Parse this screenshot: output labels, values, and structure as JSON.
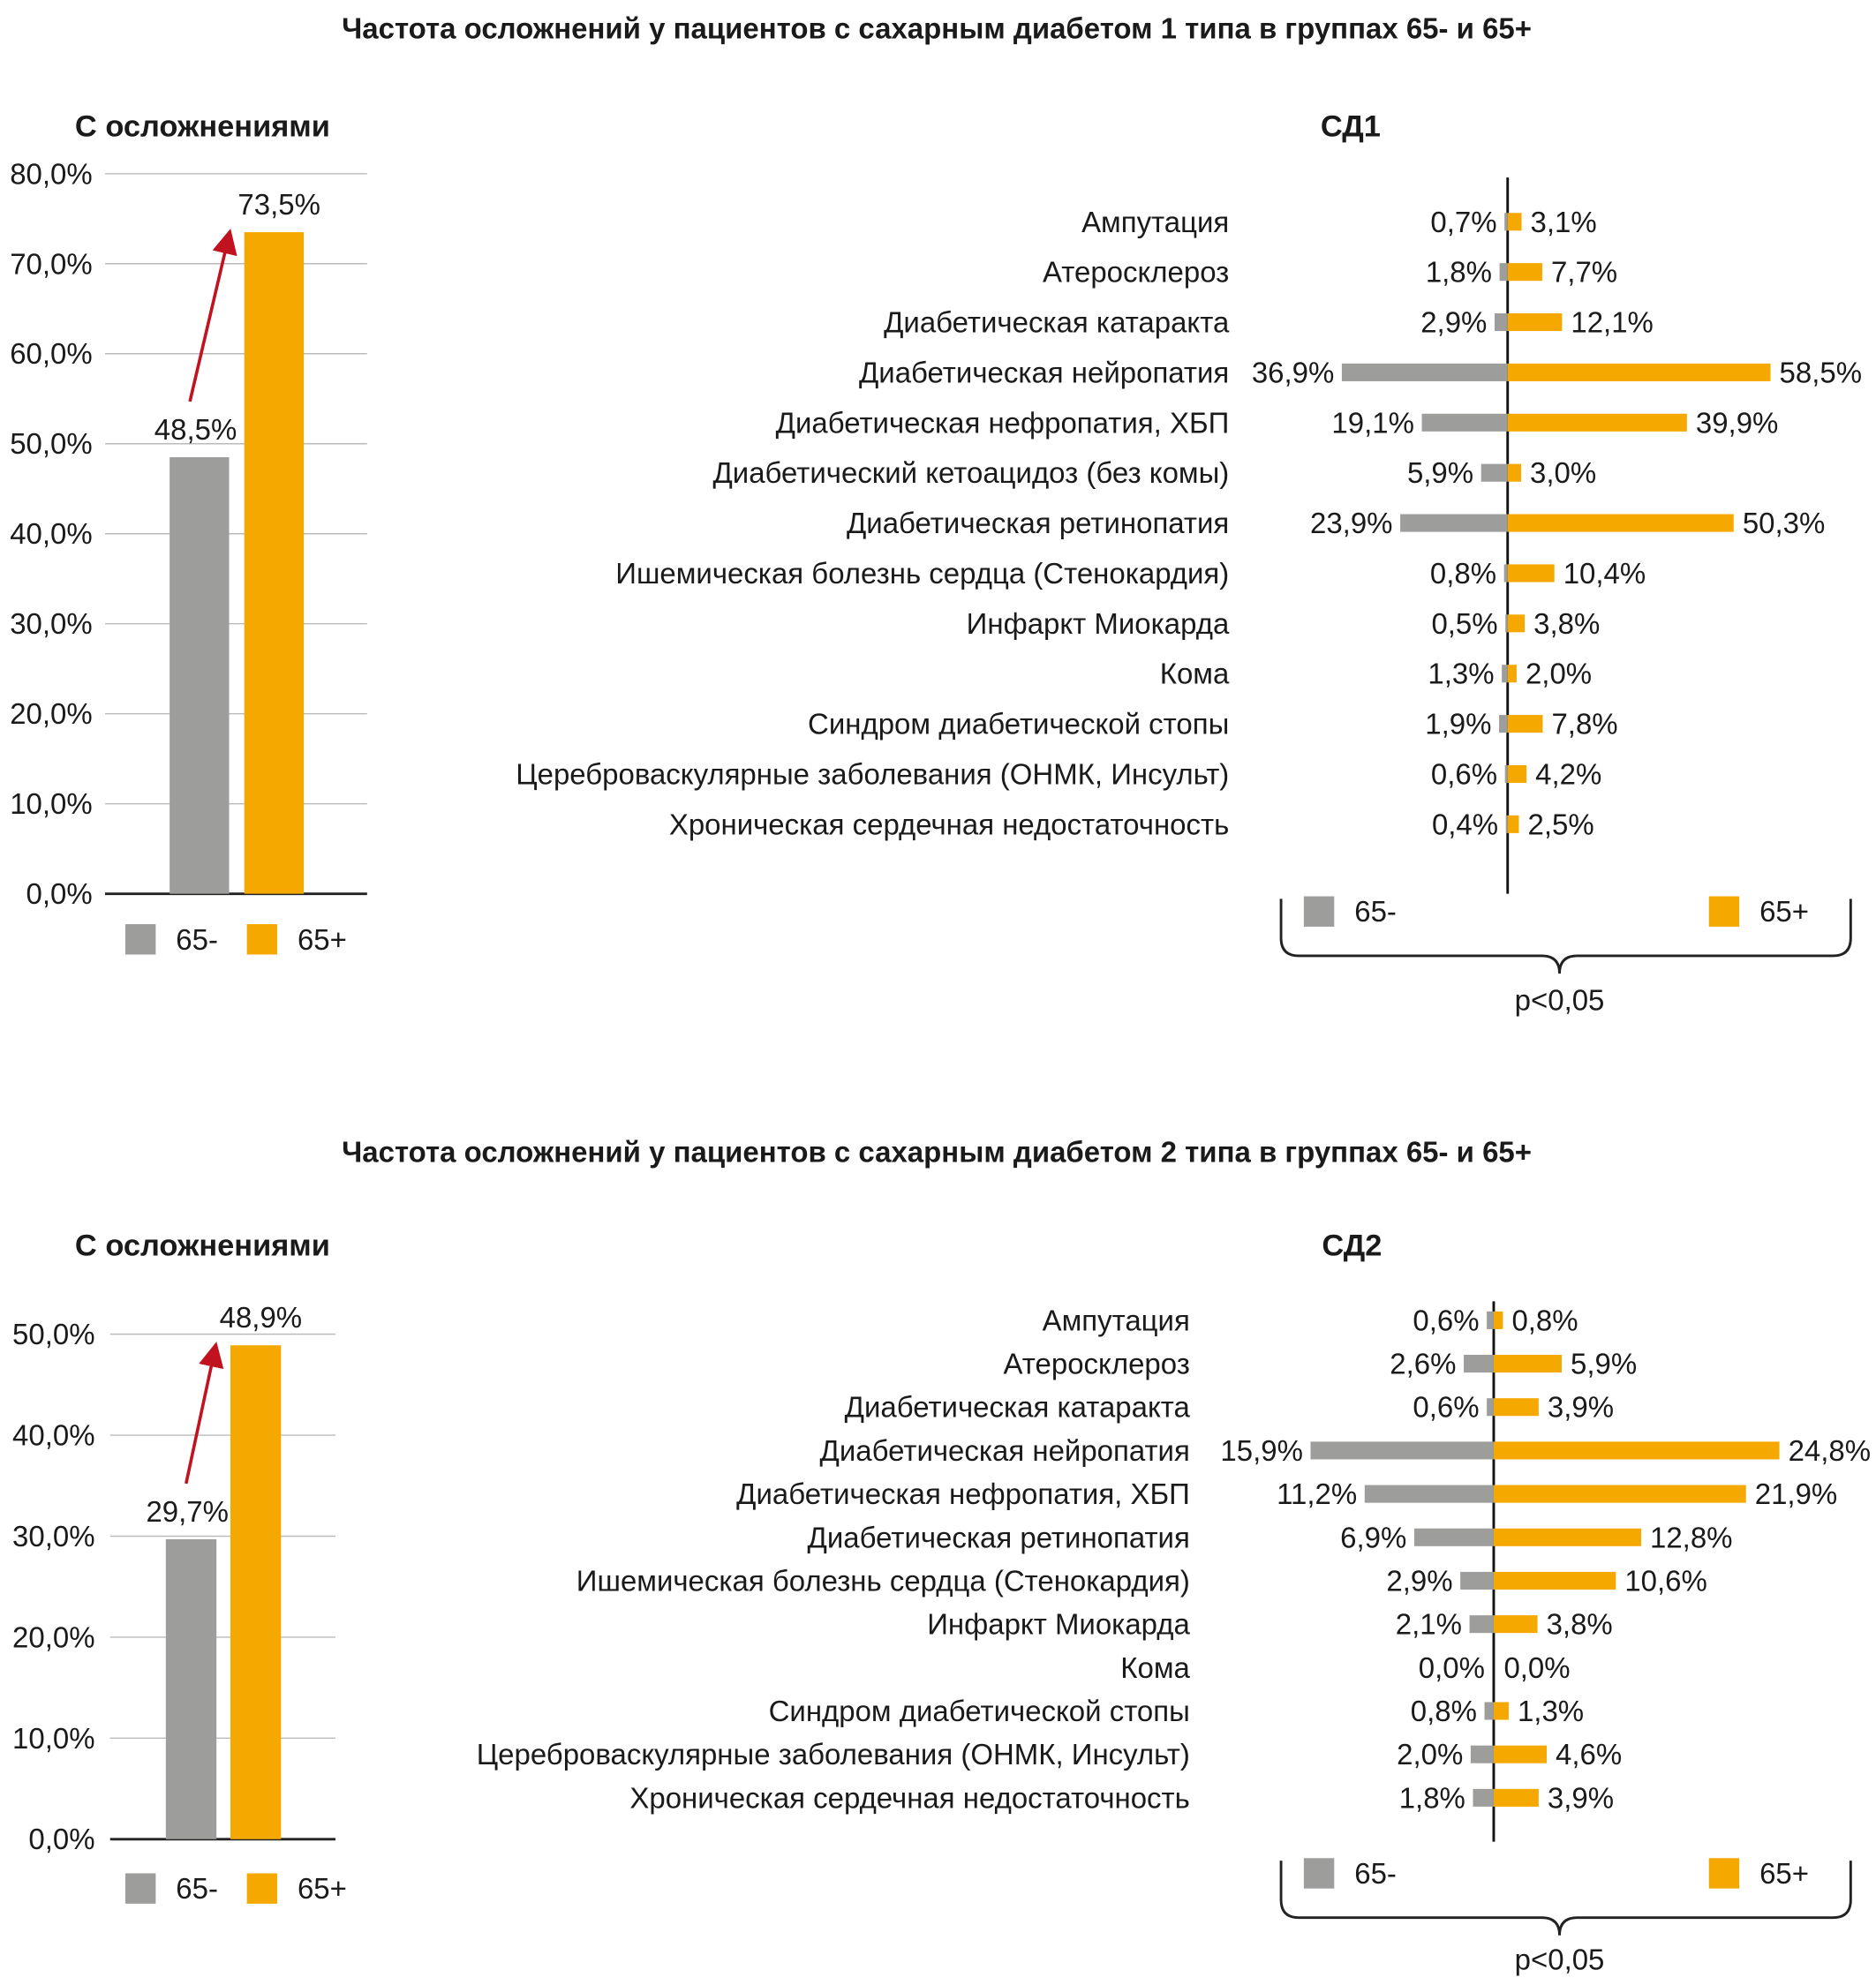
{
  "colors": {
    "under65": "#9d9d9c",
    "over65": "#f5a800",
    "arrow": "#c1121f"
  },
  "chart_data": [
    {
      "type": "bar",
      "title": "Частота осложнений у пациентов с сахарным диабетом 1 типа в группах 65- и 65+",
      "subtitle": "С осложнениями",
      "categories": [
        "65-",
        "65+"
      ],
      "values": [
        48.5,
        73.5
      ],
      "value_labels": [
        "48,5%",
        "73,5%"
      ],
      "ylim": [
        0,
        80
      ],
      "yticks": [
        "0,0%",
        "10,0%",
        "20,0%",
        "30,0%",
        "40,0%",
        "50,0%",
        "60,0%",
        "70,0%",
        "80,0%"
      ],
      "legend": [
        "65-",
        "65+"
      ]
    },
    {
      "type": "bar",
      "title": "СД1",
      "orientation": "horizontal-diverging",
      "categories": [
        "Ампутация",
        "Атеросклероз",
        "Диабетическая катаракта",
        "Диабетическая нейропатия",
        "Диабетическая нефропатия, ХБП",
        "Диабетический кетоацидоз (без комы)",
        "Диабетическая ретинопатия",
        "Ишемическая болезнь сердца (Стенокардия)",
        "Инфаркт Миокарда",
        "Кома",
        "Синдром диабетической стопы",
        "Цереброваскулярные заболевания (ОНМК, Инсульт)",
        "Хроническая сердечная недостаточность"
      ],
      "series": [
        {
          "name": "65-",
          "values": [
            0.7,
            1.8,
            2.9,
            36.9,
            19.1,
            5.9,
            23.9,
            0.8,
            0.5,
            1.3,
            1.9,
            0.6,
            0.4
          ],
          "labels": [
            "0,7%",
            "1,8%",
            "2,9%",
            "36,9%",
            "19,1%",
            "5,9%",
            "23,9%",
            "0,8%",
            "0,5%",
            "1,3%",
            "1,9%",
            "0,6%",
            "0,4%"
          ]
        },
        {
          "name": "65+",
          "values": [
            3.1,
            7.7,
            12.1,
            58.5,
            39.9,
            3.0,
            50.3,
            10.4,
            3.8,
            2.0,
            7.8,
            4.2,
            2.5
          ],
          "labels": [
            "3,1%",
            "7,7%",
            "12,1%",
            "58,5%",
            "39,9%",
            "3,0%",
            "50,3%",
            "10,4%",
            "3,8%",
            "2,0%",
            "7,8%",
            "4,2%",
            "2,5%"
          ]
        }
      ],
      "annotation": "p<0,05"
    },
    {
      "type": "bar",
      "title": "Частота осложнений у пациентов с сахарным диабетом 2 типа в группах 65- и 65+",
      "subtitle": "С осложнениями",
      "categories": [
        "65-",
        "65+"
      ],
      "values": [
        29.7,
        48.9
      ],
      "value_labels": [
        "29,7%",
        "48,9%"
      ],
      "ylim": [
        0,
        50
      ],
      "yticks": [
        "0,0%",
        "10,0%",
        "20,0%",
        "30,0%",
        "40,0%",
        "50,0%"
      ],
      "legend": [
        "65-",
        "65+"
      ]
    },
    {
      "type": "bar",
      "title": "СД2",
      "orientation": "horizontal-diverging",
      "categories": [
        "Ампутация",
        "Атеросклероз",
        "Диабетическая катаракта",
        "Диабетическая нейропатия",
        "Диабетическая нефропатия, ХБП",
        "Диабетическая ретинопатия",
        "Ишемическая болезнь сердца (Стенокардия)",
        "Инфаркт Миокарда",
        "Кома",
        "Синдром диабетической стопы",
        "Цереброваскулярные заболевания (ОНМК, Инсульт)",
        "Хроническая сердечная недостаточность"
      ],
      "series": [
        {
          "name": "65-",
          "values": [
            0.6,
            2.6,
            0.6,
            15.9,
            11.2,
            6.9,
            2.9,
            2.1,
            0.0,
            0.8,
            2.0,
            1.8
          ],
          "labels": [
            "0,6%",
            "2,6%",
            "0,6%",
            "15,9%",
            "11,2%",
            "6,9%",
            "2,9%",
            "2,1%",
            "0,0%",
            "0,8%",
            "2,0%",
            "1,8%"
          ]
        },
        {
          "name": "65+",
          "values": [
            0.8,
            5.9,
            3.9,
            24.8,
            21.9,
            12.8,
            10.6,
            3.8,
            0.0,
            1.3,
            4.6,
            3.9
          ],
          "labels": [
            "0,8%",
            "5,9%",
            "3,9%",
            "24,8%",
            "21,9%",
            "12,8%",
            "10,6%",
            "3,8%",
            "0,0%",
            "1,3%",
            "4,6%",
            "3,9%"
          ]
        }
      ],
      "annotation": "p<0,05"
    }
  ]
}
